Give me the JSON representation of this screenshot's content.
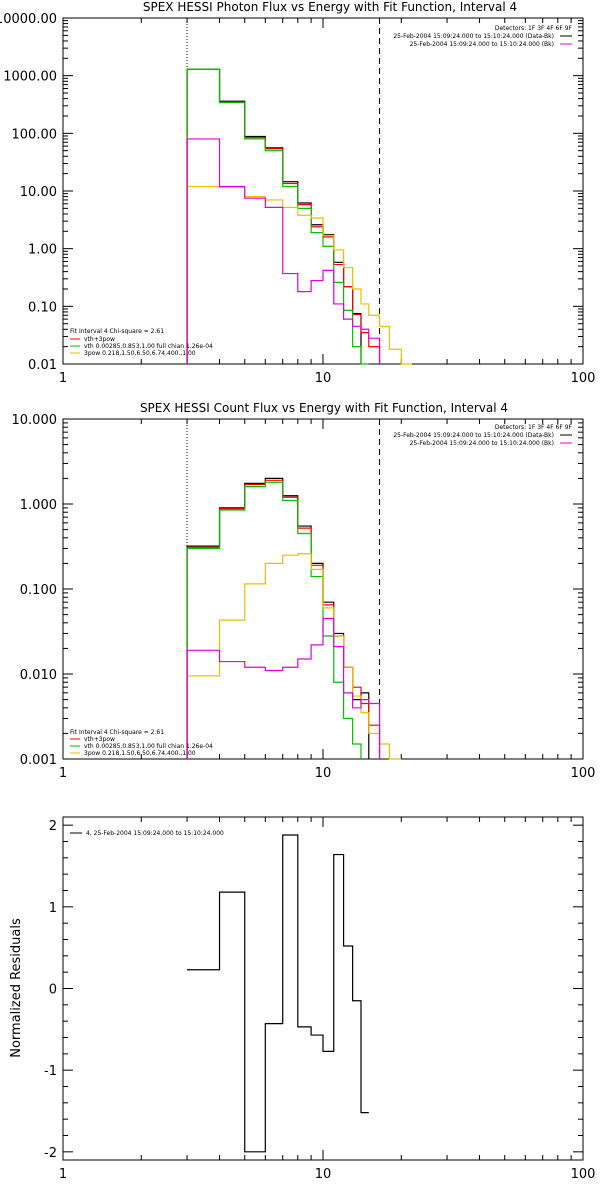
{
  "chart_data": [
    {
      "type": "line",
      "title": "SPEX HESSI Photon Flux vs Energy with Fit Function, Interval 4",
      "xscale": "log",
      "yscale": "log",
      "xlim": [
        1,
        100
      ],
      "ylim": [
        0.01,
        10000
      ],
      "x_ticks": [
        1,
        10,
        100
      ],
      "x_tick_labels": [
        "1",
        "10",
        "100"
      ],
      "y_ticks": [
        0.01,
        0.1,
        1,
        10,
        100,
        1000,
        10000
      ],
      "y_tick_labels": [
        "0.01",
        "0.10",
        "1.00",
        "10.00",
        "100.00",
        "1000.00",
        "10000.00"
      ],
      "vlines": [
        {
          "x": 3,
          "style": "dotted"
        },
        {
          "x": 16.5,
          "style": "dashed"
        }
      ],
      "legend_top_right": [
        "Detectors: 1F 3F 4F 6F 9F",
        "25-Feb-2004 15:09:24.000 to 15:10:24.000 (Data-Bk)",
        "25-Feb-2004 15:09:24.000 to 15:10:24.000 (Bk)"
      ],
      "legend_bottom_left": [
        "Fit Interval 4   Chi-square = 2.61",
        "vth+3pow",
        "vth 0.00285,0.853,1.00   full chian 1.26e-04",
        "3pow 0.218,1.50,6.50,6.74,400.,1.00"
      ],
      "bin_edges": [
        3,
        4,
        5,
        6,
        7,
        8,
        9,
        10,
        11,
        12,
        13,
        14,
        15,
        16.5,
        18,
        20,
        22
      ],
      "series": [
        {
          "name": "Data-Bk",
          "color": "#000000",
          "values": [
            1300,
            360,
            88,
            56,
            14.5,
            6.2,
            2.6,
            1.75,
            0.58,
            0.22,
            0.075,
            null,
            null,
            null,
            null,
            null
          ]
        },
        {
          "name": "vth+3pow",
          "color": "#ff0000",
          "values": [
            1300,
            350,
            84,
            54,
            13.5,
            5.8,
            2.4,
            1.6,
            0.53,
            0.22,
            0.072,
            0.035,
            0.02,
            null,
            null,
            null
          ]
        },
        {
          "name": "vth",
          "color": "#00c000",
          "values": [
            1300,
            340,
            80,
            50,
            12,
            5.0,
            1.9,
            1.1,
            0.26,
            0.085,
            0.02,
            0.007,
            null,
            null,
            null,
            null
          ]
        },
        {
          "name": "3pow",
          "color": "#e8c000",
          "values": [
            12,
            11.5,
            8,
            7,
            5.2,
            3.8,
            3.4,
            1.7,
            0.95,
            0.47,
            0.2,
            0.11,
            0.07,
            0.045,
            0.018,
            0.01
          ]
        },
        {
          "name": "Bk",
          "color": "#e000e0",
          "values": [
            80,
            12,
            7.5,
            5.2,
            0.37,
            0.18,
            0.28,
            0.42,
            0.11,
            0.06,
            0.045,
            0.04,
            0.028,
            null,
            null,
            null
          ]
        }
      ]
    },
    {
      "type": "line",
      "title": "SPEX HESSI Count Flux vs Energy with Fit Function, Interval 4",
      "xscale": "log",
      "yscale": "log",
      "xlim": [
        1,
        100
      ],
      "ylim": [
        0.001,
        10
      ],
      "x_ticks": [
        1,
        10,
        100
      ],
      "x_tick_labels": [
        "1",
        "10",
        "100"
      ],
      "y_ticks": [
        0.001,
        0.01,
        0.1,
        1,
        10
      ],
      "y_tick_labels": [
        "0.001",
        "0.010",
        "0.100",
        "1.000",
        "10.000"
      ],
      "vlines": [
        {
          "x": 3,
          "style": "dotted"
        },
        {
          "x": 16.5,
          "style": "dashed"
        }
      ],
      "legend_top_right": [
        "Detectors: 1F 3F 4F 6F 9F",
        "25-Feb-2004 15:09:24.000 to 15:10:24.000 (Data-Bk)",
        "25-Feb-2004 15:09:24.000 to 15:10:24.000 (Bk)"
      ],
      "legend_bottom_left": [
        "Fit Interval 4   Chi-square = 2.61",
        "vth+3pow",
        "vth 0.00285,0.853,1.00   full chian 1.26e-04",
        "3pow 0.218,1.50,6.50,6.74,400.,1.00"
      ],
      "bin_edges": [
        3,
        4,
        5,
        6,
        7,
        8,
        9,
        10,
        11,
        12,
        13,
        14,
        15,
        16.5,
        18,
        20,
        22
      ],
      "series": [
        {
          "name": "Data-Bk",
          "color": "#000000",
          "values": [
            0.32,
            0.9,
            1.75,
            2.0,
            1.25,
            0.55,
            0.2,
            0.07,
            0.03,
            0.012,
            0.005,
            0.006,
            null,
            null,
            null,
            null
          ]
        },
        {
          "name": "vth+3pow",
          "color": "#ff0000",
          "values": [
            0.31,
            0.88,
            1.7,
            1.9,
            1.2,
            0.52,
            0.19,
            0.065,
            0.028,
            0.012,
            0.007,
            0.0045,
            0.0025,
            null,
            null,
            null
          ]
        },
        {
          "name": "vth",
          "color": "#00c000",
          "values": [
            0.3,
            0.85,
            1.6,
            1.8,
            1.1,
            0.45,
            0.14,
            0.028,
            0.008,
            0.003,
            0.0015,
            null,
            null,
            null,
            null,
            null
          ]
        },
        {
          "name": "3pow",
          "color": "#e8c000",
          "values": [
            0.0095,
            0.043,
            0.115,
            0.2,
            0.25,
            0.26,
            0.17,
            0.06,
            0.028,
            0.012,
            0.0055,
            0.0035,
            0.002,
            0.0015,
            0.001,
            null
          ]
        },
        {
          "name": "Bk",
          "color": "#e000e0",
          "values": [
            0.019,
            0.014,
            0.012,
            0.011,
            0.012,
            0.015,
            0.022,
            0.045,
            0.021,
            0.006,
            0.004,
            0.005,
            0.0045,
            null,
            null,
            null
          ]
        }
      ]
    },
    {
      "type": "line",
      "title": "",
      "xscale": "log",
      "yscale": "linear",
      "xlim": [
        1,
        100
      ],
      "ylim": [
        -2.1,
        2.1
      ],
      "ylabel": "Normalized Residuals",
      "x_ticks": [
        1,
        10,
        100
      ],
      "x_tick_labels": [
        "1",
        "10",
        "100"
      ],
      "y_ticks": [
        -2,
        -1,
        0,
        1,
        2
      ],
      "y_tick_labels": [
        "-2",
        "-1",
        "0",
        "1",
        "2"
      ],
      "legend_top_left": [
        "4, 25-Feb-2004 15:09:24.000 to 15:10:24.000"
      ],
      "bin_edges": [
        3,
        4,
        5,
        6,
        7,
        8,
        9,
        10,
        11,
        12,
        13,
        14,
        15,
        16.5
      ],
      "series": [
        {
          "name": "",
          "color": "#000000",
          "values": [
            0.23,
            1.18,
            -2.0,
            -0.43,
            1.88,
            -0.47,
            -0.57,
            -0.77,
            1.64,
            0.52,
            -0.15,
            -1.52
          ]
        }
      ]
    }
  ]
}
